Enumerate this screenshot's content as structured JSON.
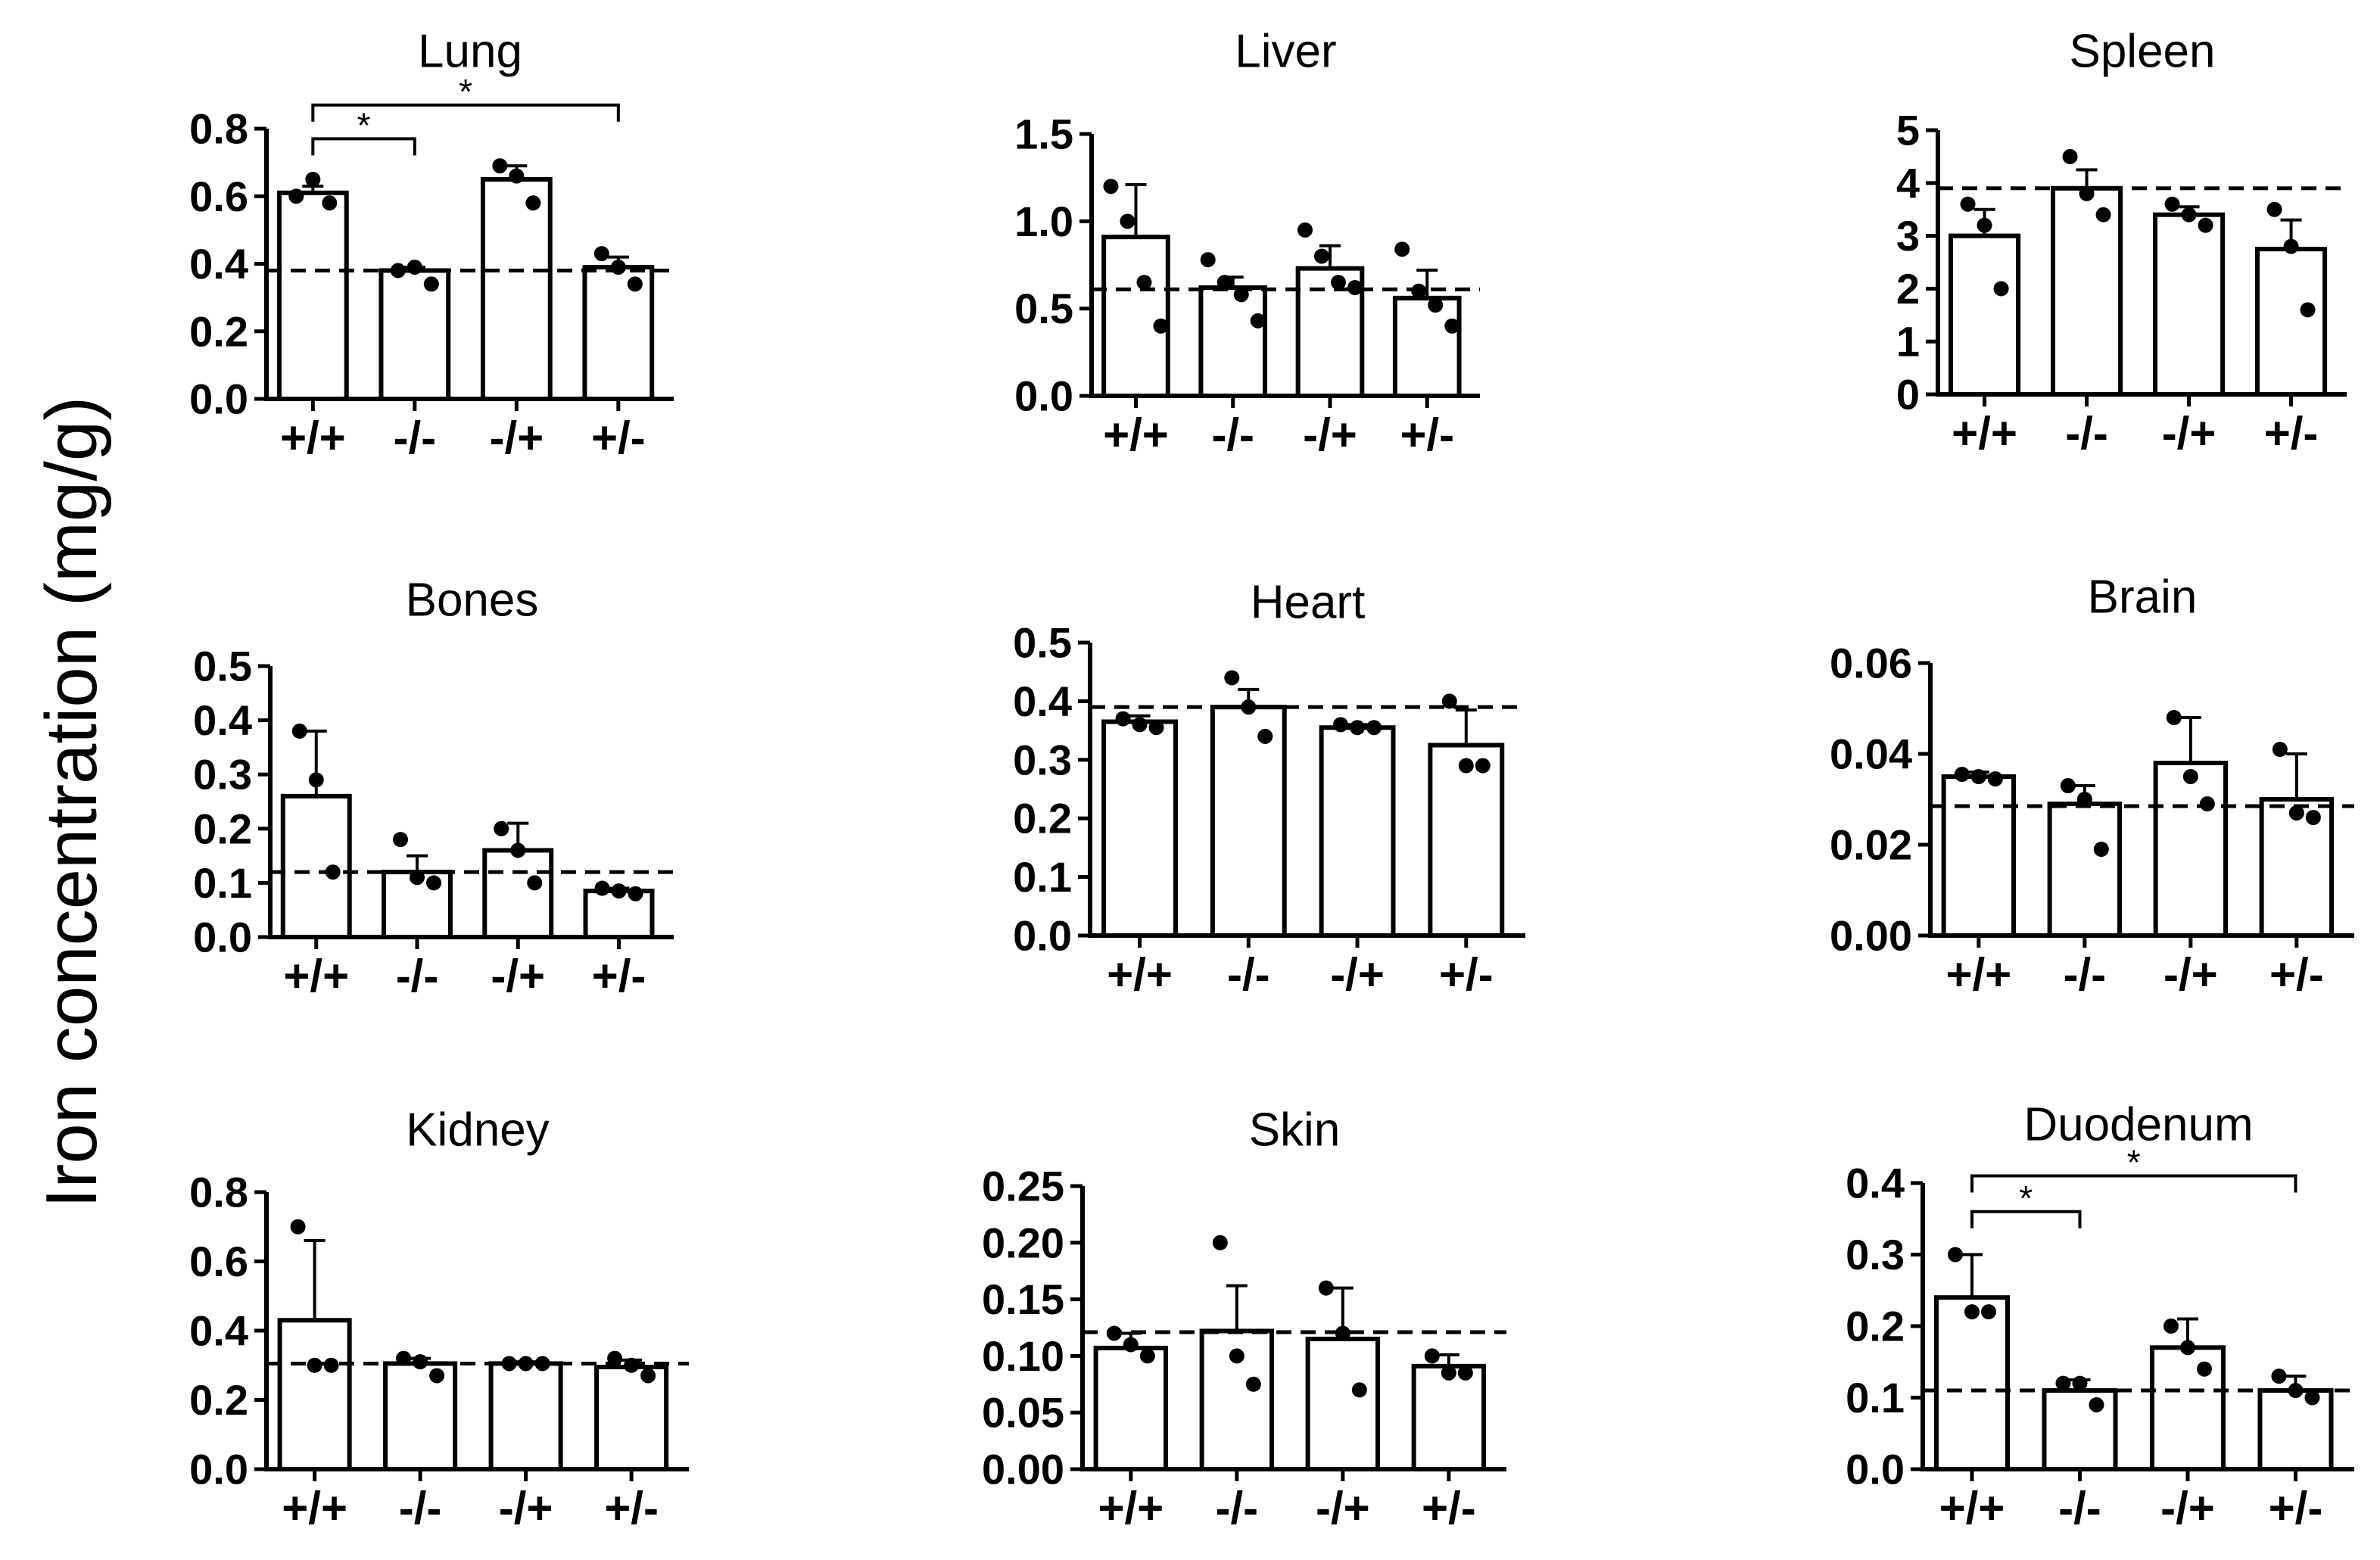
{
  "y_axis_label": "Iron concentration (mg/g)",
  "chart_data": [
    {
      "type": "bar",
      "title": "Lung",
      "categories": [
        "+/+",
        "-/-",
        "-/+",
        "+/-"
      ],
      "ylim": [
        0,
        0.8
      ],
      "ticks": [
        "0.0",
        "0.2",
        "0.4",
        "0.6",
        "0.8"
      ],
      "values": [
        0.61,
        0.38,
        0.65,
        0.39
      ],
      "errors": [
        0.02,
        0.01,
        0.04,
        0.03
      ],
      "points": [
        [
          0.6,
          0.65,
          0.58
        ],
        [
          0.38,
          0.39,
          0.34
        ],
        [
          0.69,
          0.66,
          0.58
        ],
        [
          0.43,
          0.39,
          0.34
        ]
      ],
      "reference": 0.38,
      "significance": [
        {
          "from": 0,
          "to": 1,
          "label": "*",
          "level": 0.77
        },
        {
          "from": 0,
          "to": 3,
          "label": "*",
          "level": 0.87
        }
      ]
    },
    {
      "type": "bar",
      "title": "Liver",
      "categories": [
        "+/+",
        "-/-",
        "-/+",
        "+/-"
      ],
      "ylim": [
        0,
        1.5
      ],
      "ticks": [
        "0.0",
        "0.5",
        "1.0",
        "1.5"
      ],
      "values": [
        0.91,
        0.62,
        0.73,
        0.56
      ],
      "errors": [
        0.3,
        0.06,
        0.13,
        0.16
      ],
      "points": [
        [
          1.2,
          1.0,
          0.65,
          0.4
        ],
        [
          0.78,
          0.65,
          0.58,
          0.43
        ],
        [
          0.95,
          0.8,
          0.65,
          0.62
        ],
        [
          0.84,
          0.6,
          0.52,
          0.4
        ]
      ],
      "reference": 0.61,
      "significance": []
    },
    {
      "type": "bar",
      "title": "Spleen",
      "categories": [
        "+/+",
        "-/-",
        "-/+",
        "+/-"
      ],
      "ylim": [
        0,
        5
      ],
      "ticks": [
        "0",
        "1",
        "2",
        "3",
        "4",
        "5"
      ],
      "values": [
        3.0,
        3.9,
        3.4,
        2.75
      ],
      "errors": [
        0.5,
        0.35,
        0.15,
        0.55
      ],
      "points": [
        [
          3.6,
          3.2,
          2.0
        ],
        [
          4.5,
          3.8,
          3.4
        ],
        [
          3.6,
          3.4,
          3.2
        ],
        [
          3.5,
          2.8,
          1.6
        ]
      ],
      "reference": 3.9,
      "significance": []
    },
    {
      "type": "bar",
      "title": "Bones",
      "categories": [
        "+/+",
        "-/-",
        "-/+",
        "+/-"
      ],
      "ylim": [
        0,
        0.5
      ],
      "ticks": [
        "0.0",
        "0.1",
        "0.2",
        "0.3",
        "0.4",
        "0.5"
      ],
      "values": [
        0.26,
        0.12,
        0.16,
        0.085
      ],
      "errors": [
        0.12,
        0.03,
        0.05,
        0.005
      ],
      "points": [
        [
          0.38,
          0.29,
          0.12
        ],
        [
          0.18,
          0.11,
          0.1
        ],
        [
          0.2,
          0.16,
          0.1
        ],
        [
          0.09,
          0.085,
          0.08
        ]
      ],
      "reference": 0.12,
      "significance": []
    },
    {
      "type": "bar",
      "title": "Heart",
      "categories": [
        "+/+",
        "-/-",
        "-/+",
        "+/-"
      ],
      "ylim": [
        0,
        0.5
      ],
      "ticks": [
        "0.0",
        "0.1",
        "0.2",
        "0.3",
        "0.4",
        "0.5"
      ],
      "values": [
        0.365,
        0.39,
        0.355,
        0.325
      ],
      "errors": [
        0.01,
        0.03,
        0.005,
        0.06
      ],
      "points": [
        [
          0.37,
          0.36,
          0.355
        ],
        [
          0.44,
          0.39,
          0.34
        ],
        [
          0.36,
          0.355,
          0.355
        ],
        [
          0.4,
          0.29,
          0.29
        ]
      ],
      "reference": 0.39,
      "significance": []
    },
    {
      "type": "bar",
      "title": "Brain",
      "categories": [
        "+/+",
        "-/-",
        "-/+",
        "+/-"
      ],
      "ylim": [
        0,
        0.06
      ],
      "ticks": [
        "0.00",
        "0.02",
        "0.04",
        "0.06"
      ],
      "values": [
        0.035,
        0.029,
        0.038,
        0.03
      ],
      "errors": [
        0.001,
        0.004,
        0.01,
        0.01
      ],
      "points": [
        [
          0.0355,
          0.035,
          0.0345
        ],
        [
          0.033,
          0.03,
          0.019
        ],
        [
          0.048,
          0.035,
          0.029
        ],
        [
          0.041,
          0.027,
          0.026
        ]
      ],
      "reference": 0.0285,
      "significance": []
    },
    {
      "type": "bar",
      "title": "Kidney",
      "categories": [
        "+/+",
        "-/-",
        "-/+",
        "+/-"
      ],
      "ylim": [
        0,
        0.8
      ],
      "ticks": [
        "0.0",
        "0.2",
        "0.4",
        "0.6",
        "0.8"
      ],
      "values": [
        0.43,
        0.305,
        0.305,
        0.295
      ],
      "errors": [
        0.23,
        0.015,
        0.005,
        0.02
      ],
      "points": [
        [
          0.7,
          0.3,
          0.3
        ],
        [
          0.32,
          0.31,
          0.27
        ],
        [
          0.305,
          0.305,
          0.305
        ],
        [
          0.32,
          0.3,
          0.27
        ]
      ],
      "reference": 0.305,
      "significance": []
    },
    {
      "type": "bar",
      "title": "Skin",
      "categories": [
        "+/+",
        "-/-",
        "-/+",
        "+/-"
      ],
      "ylim": [
        0,
        0.25
      ],
      "ticks": [
        "0.00",
        "0.05",
        "0.10",
        "0.15",
        "0.20",
        "0.25"
      ],
      "values": [
        0.107,
        0.122,
        0.115,
        0.091
      ],
      "errors": [
        0.013,
        0.04,
        0.045,
        0.01
      ],
      "points": [
        [
          0.12,
          0.11,
          0.1
        ],
        [
          0.2,
          0.1,
          0.075
        ],
        [
          0.16,
          0.12,
          0.07
        ],
        [
          0.1,
          0.085,
          0.085
        ]
      ],
      "reference": 0.121,
      "significance": []
    },
    {
      "type": "bar",
      "title": "Duodenum",
      "categories": [
        "+/+",
        "-/-",
        "-/+",
        "+/-"
      ],
      "ylim": [
        0,
        0.4
      ],
      "ticks": [
        "0.0",
        "0.1",
        "0.2",
        "0.3",
        "0.4"
      ],
      "values": [
        0.24,
        0.11,
        0.17,
        0.11
      ],
      "errors": [
        0.06,
        0.015,
        0.04,
        0.02
      ],
      "points": [
        [
          0.3,
          0.22,
          0.22
        ],
        [
          0.12,
          0.12,
          0.09
        ],
        [
          0.2,
          0.17,
          0.14
        ],
        [
          0.13,
          0.11,
          0.1
        ]
      ],
      "reference": 0.11,
      "significance": [
        {
          "from": 0,
          "to": 1,
          "label": "*",
          "level": 0.36
        },
        {
          "from": 0,
          "to": 3,
          "label": "*",
          "level": 0.41
        }
      ]
    }
  ]
}
